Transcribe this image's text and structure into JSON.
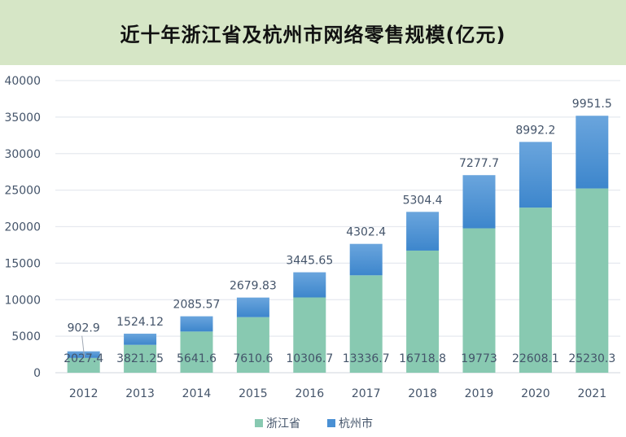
{
  "chart_data": {
    "type": "bar",
    "stacked": true,
    "title": "近十年浙江省及杭州市网络零售规模(亿元)",
    "categories": [
      "2012",
      "2013",
      "2014",
      "2015",
      "2016",
      "2017",
      "2018",
      "2019",
      "2020",
      "2021"
    ],
    "series": [
      {
        "name": "浙江省",
        "color": "#88c9b1",
        "values": [
          2027.4,
          3821.25,
          5641.6,
          7610.6,
          10306.7,
          13336.7,
          16718.8,
          19773,
          22608.1,
          25230.3
        ],
        "labels": [
          "2027.4",
          "3821.25",
          "5641.6",
          "7610.6",
          "10306.7",
          "13336.7",
          "16718.8",
          "19773",
          "22608.1",
          "25230.3"
        ]
      },
      {
        "name": "杭州市",
        "color": "#4a90d4",
        "values": [
          902.9,
          1524.12,
          2085.57,
          2679.83,
          3445.65,
          4302.4,
          5304.4,
          7277.7,
          8992.2,
          9951.5
        ],
        "labels": [
          "902.9",
          "1524.12",
          "2085.57",
          "2679.83",
          "3445.65",
          "4302.4",
          "5304.4",
          "7277.7",
          "8992.2",
          "9951.5"
        ]
      }
    ],
    "ylim": [
      0,
      40000
    ],
    "yticks": [
      "0",
      "5000",
      "10000",
      "15000",
      "20000",
      "25000",
      "30000",
      "35000",
      "40000"
    ],
    "grid": true,
    "legend": "bottom"
  }
}
